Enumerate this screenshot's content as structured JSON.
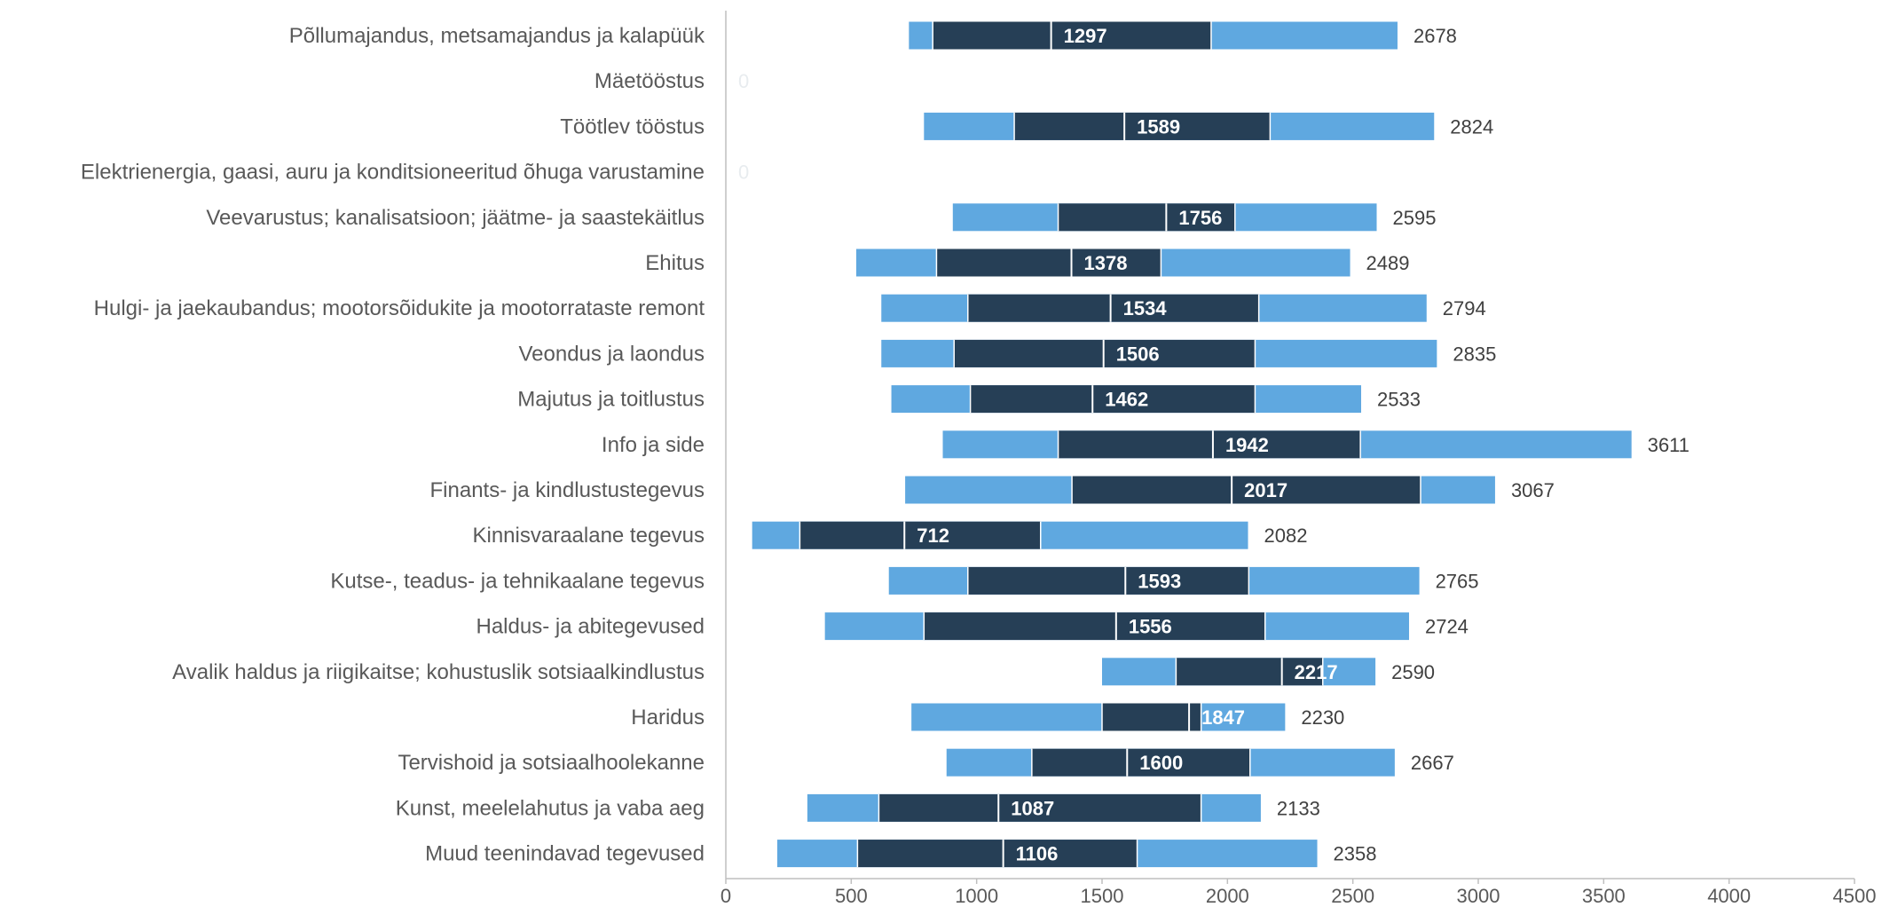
{
  "chart_data": {
    "type": "bar",
    "orientation": "horizontal",
    "style": "floating range (box-style) bars",
    "colors": {
      "outer_range": "#5fa8e0",
      "inner_range": "#263f56",
      "median_line": "#ffffff",
      "axis": "#bfbfbf",
      "text": "#595959"
    },
    "xlim": [
      0,
      4500
    ],
    "xticks": [
      0,
      500,
      1000,
      1500,
      2000,
      2500,
      3000,
      3500,
      4000,
      4500
    ],
    "grid": false,
    "legend": "none",
    "categories": [
      "Põllumajandus, metsamajandus ja kalapüük",
      "Mäetööstus",
      "Töötlev tööstus",
      "Elektrienergia, gaasi, auru ja konditsioneeritud õhuga varustamine",
      "Veevarustus; kanalisatsioon; jäätme- ja saastekäitlus",
      "Ehitus",
      "Hulgi- ja jaekaubandus; mootorsõidukite ja mootorrataste remont",
      "Veondus ja laondus",
      "Majutus ja toitlustus",
      "Info ja side",
      "Finants- ja kindlustustegevus",
      "Kinnisvaraalane tegevus",
      "Kutse-, teadus- ja tehnikaalane tegevus",
      "Haldus- ja abitegevused",
      "Avalik haldus ja riigikaitse; kohustuslik sotsiaalkindlustus",
      "Haridus",
      "Tervishoid ja sotsiaalhoolekanne",
      "Kunst, meelelahutus ja vaba aeg",
      "Muud teenindavad tegevused"
    ],
    "rows": [
      {
        "min": 730,
        "q1": 825,
        "median": 1297,
        "q3": 1935,
        "max": 2678
      },
      {
        "min": 0,
        "q1": 0,
        "median": 0,
        "q3": 0,
        "max": 0
      },
      {
        "min": 790,
        "q1": 1150,
        "median": 1589,
        "q3": 2170,
        "max": 2824
      },
      {
        "min": 0,
        "q1": 0,
        "median": 0,
        "q3": 0,
        "max": 0
      },
      {
        "min": 905,
        "q1": 1325,
        "median": 1756,
        "q3": 2030,
        "max": 2595
      },
      {
        "min": 520,
        "q1": 840,
        "median": 1378,
        "q3": 1735,
        "max": 2489
      },
      {
        "min": 620,
        "q1": 965,
        "median": 1534,
        "q3": 2125,
        "max": 2794
      },
      {
        "min": 620,
        "q1": 910,
        "median": 1506,
        "q3": 2110,
        "max": 2835
      },
      {
        "min": 660,
        "q1": 975,
        "median": 1462,
        "q3": 2110,
        "max": 2533
      },
      {
        "min": 865,
        "q1": 1325,
        "median": 1942,
        "q3": 2530,
        "max": 3611
      },
      {
        "min": 715,
        "q1": 1380,
        "median": 2017,
        "q3": 2770,
        "max": 3067
      },
      {
        "min": 105,
        "q1": 295,
        "median": 712,
        "q3": 1255,
        "max": 2082
      },
      {
        "min": 650,
        "q1": 965,
        "median": 1593,
        "q3": 2085,
        "max": 2765
      },
      {
        "min": 395,
        "q1": 790,
        "median": 1556,
        "q3": 2150,
        "max": 2724
      },
      {
        "min": 1500,
        "q1": 1795,
        "median": 2217,
        "q3": 2380,
        "max": 2590
      },
      {
        "min": 740,
        "q1": 1500,
        "median": 1847,
        "q3": 1895,
        "max": 2230
      },
      {
        "min": 880,
        "q1": 1220,
        "median": 1600,
        "q3": 2090,
        "max": 2667
      },
      {
        "min": 325,
        "q1": 610,
        "median": 1087,
        "q3": 1895,
        "max": 2133
      },
      {
        "min": 205,
        "q1": 525,
        "median": 1106,
        "q3": 1640,
        "max": 2358
      }
    ],
    "labels": [
      {
        "median": "1297",
        "max": "2678"
      },
      {
        "median": "",
        "max": "0"
      },
      {
        "median": "1589",
        "max": "2824"
      },
      {
        "median": "",
        "max": "0"
      },
      {
        "median": "1756",
        "max": "2595"
      },
      {
        "median": "1378",
        "max": "2489"
      },
      {
        "median": "1534",
        "max": "2794"
      },
      {
        "median": "1506",
        "max": "2835"
      },
      {
        "median": "1462",
        "max": "2533"
      },
      {
        "median": "1942",
        "max": "3611"
      },
      {
        "median": "2017",
        "max": "3067"
      },
      {
        "median": "712",
        "max": "2082"
      },
      {
        "median": "1593",
        "max": "2765"
      },
      {
        "median": "1556",
        "max": "2724"
      },
      {
        "median": "2217",
        "max": "2590"
      },
      {
        "median": "1847",
        "max": "2230"
      },
      {
        "median": "1600",
        "max": "2667"
      },
      {
        "median": "1087",
        "max": "2133"
      },
      {
        "median": "1106",
        "max": "2358"
      }
    ]
  }
}
